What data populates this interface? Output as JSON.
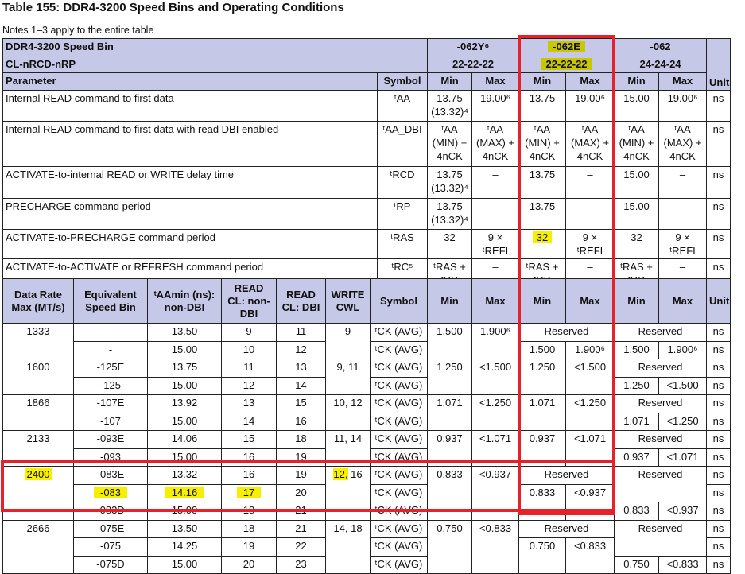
{
  "title": "Table 155: DDR4-3200 Speed Bins and Operating Conditions",
  "notes": "Notes 1–3 apply to the entire table",
  "colors": {
    "header_bg": "#c5c8e7",
    "highlight": "#f7ef00",
    "annotation_box": "#e8202a"
  },
  "top": {
    "speed_bin_label": "DDR4-3200 Speed Bin",
    "cl_label": "CL-nRCD-nRP",
    "parameter_label": "Parameter",
    "symbol_label": "Symbol",
    "unit_label": "Unit",
    "min_label": "Min",
    "max_label": "Max",
    "bins": [
      {
        "name": "-062Y⁶",
        "cl": "22-22-22"
      },
      {
        "name": "-062E",
        "cl": "22-22-22"
      },
      {
        "name": "-062",
        "cl": "24-24-24"
      }
    ],
    "rows": [
      {
        "param": "Internal READ command to first data",
        "symbol": "ᵗAA",
        "v": [
          "13.75 (13.32)⁴",
          "19.00⁶",
          "13.75",
          "19.00⁶",
          "15.00",
          "19.00⁶"
        ],
        "unit": "ns"
      },
      {
        "param": "Internal READ command to first data with read DBI enabled",
        "symbol": "ᵗAA_DBI",
        "v": [
          "ᵗAA (MIN) + 4nCK",
          "ᵗAA (MAX) + 4nCK",
          "ᵗAA (MIN) + 4nCK",
          "ᵗAA (MAX) + 4nCK",
          "ᵗAA (MIN) + 4nCK",
          "ᵗAA (MAX) + 4nCK"
        ],
        "unit": "ns"
      },
      {
        "param": "ACTIVATE-to-internal READ or WRITE delay time",
        "symbol": "ᵗRCD",
        "v": [
          "13.75 (13.32)⁴",
          "–",
          "13.75",
          "–",
          "15.00",
          "–"
        ],
        "unit": "ns"
      },
      {
        "param": "PRECHARGE command period",
        "symbol": "ᵗRP",
        "v": [
          "13.75 (13.32)⁴",
          "–",
          "13.75",
          "–",
          "15.00",
          "–"
        ],
        "unit": "ns"
      },
      {
        "param": "ACTIVATE-to-PRECHARGE command period",
        "symbol": "ᵗRAS",
        "v": [
          "32",
          "9 × ᵗREFI",
          "32",
          "9 × ᵗREFI",
          "32",
          "9 × ᵗREFI"
        ],
        "unit": "ns"
      },
      {
        "param": "ACTIVATE-to-ACTIVATE or REFRESH command period",
        "symbol": "ᵗRC⁵",
        "v": [
          "ᵗRAS + ᵗRP",
          "–",
          "ᵗRAS + ᵗRP",
          "–",
          "ᵗRAS + ᵗRP",
          "–"
        ],
        "unit": "ns"
      }
    ]
  },
  "bottom": {
    "headers": [
      "Data Rate Max (MT/s)",
      "Equivalent Speed Bin",
      "ᵗAAmin (ns): non-DBI",
      "READ CL: non-DBI",
      "READ CL: DBI",
      "WRITE CWL",
      "Symbol",
      "Min",
      "Max",
      "Min",
      "Max",
      "Min",
      "Max",
      "Unit"
    ],
    "sym": "ᵗCK (AVG)",
    "unit": "ns",
    "reserved": "Reserved",
    "groups": [
      {
        "rate": "1333",
        "cwl": "9",
        "min": "1.500",
        "max": "1.900⁶",
        "rows": [
          {
            "bin": "-",
            "taa": "13.50",
            "cl": "9",
            "dbi": "11"
          },
          {
            "bin": "-",
            "taa": "15.00",
            "cl": "10",
            "dbi": "12"
          }
        ],
        "e": {
          "min": "1.500",
          "max": "1.900⁶"
        },
        "n": {
          "min": "1.500",
          "max": "1.900⁶"
        }
      },
      {
        "rate": "1600",
        "cwl": "9, 11",
        "min": "1.250",
        "max": "<1.500",
        "rows": [
          {
            "bin": "-125E",
            "taa": "13.75",
            "cl": "11",
            "dbi": "13"
          },
          {
            "bin": "-125",
            "taa": "15.00",
            "cl": "12",
            "dbi": "14"
          }
        ],
        "e": {
          "min": "1.250",
          "max": "<1.500"
        },
        "n": {
          "min": "1.250",
          "max": "<1.500"
        }
      },
      {
        "rate": "1866",
        "cwl": "10, 12",
        "min": "1.071",
        "max": "<1.250",
        "rows": [
          {
            "bin": "-107E",
            "taa": "13.92",
            "cl": "13",
            "dbi": "15"
          },
          {
            "bin": "-107",
            "taa": "15.00",
            "cl": "14",
            "dbi": "16"
          }
        ],
        "e": {
          "min": "1.071",
          "max": "<1.250"
        },
        "n": {
          "min": "1.071",
          "max": "<1.250"
        }
      },
      {
        "rate": "2133",
        "cwl": "11, 14",
        "min": "0.937",
        "max": "<1.071",
        "rows": [
          {
            "bin": "-093E",
            "taa": "14.06",
            "cl": "15",
            "dbi": "18"
          },
          {
            "bin": "-093",
            "taa": "15.00",
            "cl": "16",
            "dbi": "19"
          }
        ],
        "e": {
          "min": "0.937",
          "max": "<1.071"
        },
        "n": {
          "min": "0.937",
          "max": "<1.071"
        }
      },
      {
        "rate": "2400",
        "cwl_a": "12,",
        "cwl_b": " 16",
        "min": "0.833",
        "max": "<0.937",
        "rows": [
          {
            "bin": "-083E",
            "taa": "13.32",
            "cl": "16",
            "dbi": "19"
          },
          {
            "bin": "-083",
            "taa": "14.16",
            "cl": "17",
            "dbi": "20"
          },
          {
            "bin": "-083D",
            "taa": "15.00",
            "cl": "18",
            "dbi": "21"
          }
        ],
        "e": {
          "min": "0.833",
          "max": "<0.937"
        },
        "n": {
          "min": "0.833",
          "max": "<0.937"
        }
      },
      {
        "rate": "2666",
        "cwl": "14, 18",
        "min": "0.750",
        "max": "<0.833",
        "rows": [
          {
            "bin": "-075E",
            "taa": "13.50",
            "cl": "18",
            "dbi": "21"
          },
          {
            "bin": "-075",
            "taa": "14.25",
            "cl": "19",
            "dbi": "22"
          },
          {
            "bin": "-075D",
            "taa": "15.00",
            "cl": "20",
            "dbi": "23"
          }
        ],
        "e": {
          "min": "0.750",
          "max": "<0.833"
        },
        "n": {
          "min": "0.750",
          "max": "<0.833"
        }
      }
    ]
  }
}
